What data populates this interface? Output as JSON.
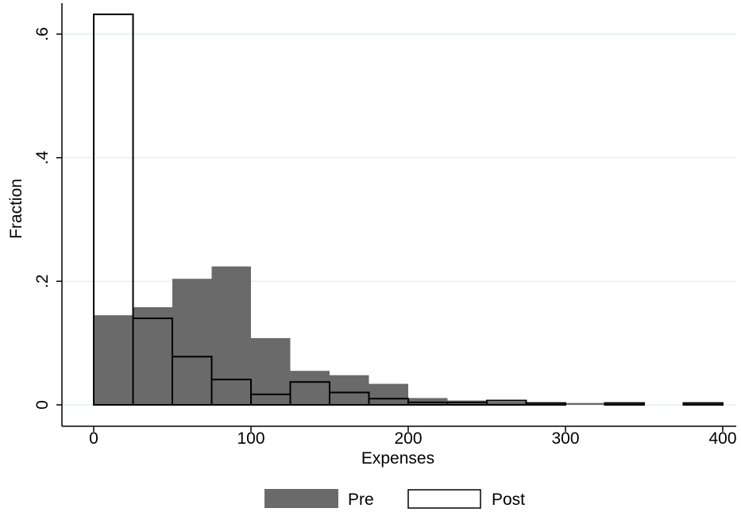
{
  "chart_data": {
    "type": "bar",
    "subtype": "overlaid-histogram",
    "xlabel": "Expenses",
    "ylabel": "Fraction",
    "xlim": [
      -20,
      408
    ],
    "ylim": [
      -0.035,
      0.655
    ],
    "xticks": [
      {
        "value": 0,
        "label": "0"
      },
      {
        "value": 100,
        "label": "100"
      },
      {
        "value": 200,
        "label": "200"
      },
      {
        "value": 300,
        "label": "300"
      },
      {
        "value": 400,
        "label": "400"
      }
    ],
    "yticks": [
      {
        "value": 0,
        "label": "0"
      },
      {
        "value": 0.2,
        "label": ".2"
      },
      {
        "value": 0.4,
        "label": ".4"
      },
      {
        "value": 0.6,
        "label": ".6"
      }
    ],
    "grid": true,
    "bin_width": 25,
    "bin_starts": [
      0,
      25,
      50,
      75,
      100,
      125,
      150,
      175,
      200,
      225,
      250,
      275,
      300,
      325,
      350,
      375
    ],
    "series": [
      {
        "name": "Pre",
        "style": "filled",
        "color": "#6a6a6a",
        "values": [
          0.145,
          0.158,
          0.204,
          0.224,
          0.108,
          0.055,
          0.048,
          0.034,
          0.011,
          0.007,
          0.005,
          0.003,
          0.003,
          0.003,
          0.0,
          0.002
        ]
      },
      {
        "name": "Post",
        "style": "outline",
        "color": "#000000",
        "values": [
          0.632,
          0.14,
          0.078,
          0.041,
          0.017,
          0.037,
          0.02,
          0.01,
          0.004,
          0.004,
          0.007,
          0.003,
          0.0,
          0.003,
          0.0,
          0.003
        ]
      }
    ],
    "legend": {
      "position": "bottom",
      "entries": [
        "Pre",
        "Post"
      ]
    }
  }
}
